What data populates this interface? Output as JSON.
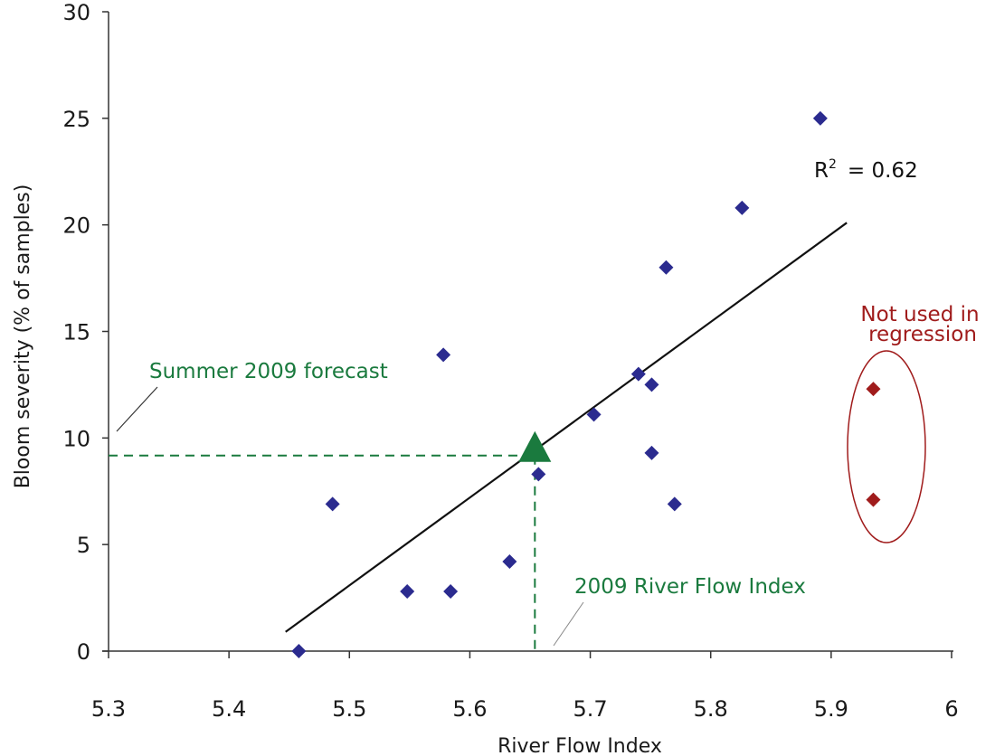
{
  "chart_data": {
    "type": "scatter",
    "xlabel": "River Flow Index",
    "ylabel": "Bloom severity (% of samples)",
    "xlim": [
      5.3,
      6
    ],
    "ylim": [
      0,
      30
    ],
    "x_ticks": [
      "5.3",
      "5.4",
      "5.5",
      "5.6",
      "5.7",
      "5.8",
      "5.9",
      "6"
    ],
    "y_ticks": [
      "0",
      "5",
      "10",
      "15",
      "20",
      "25",
      "30"
    ],
    "grid": false,
    "series": [
      {
        "color": "#2b2b8f",
        "marker": "diamond",
        "points": [
          {
            "x": 5.458,
            "y": 0
          },
          {
            "x": 5.486,
            "y": 6.9
          },
          {
            "x": 5.548,
            "y": 2.8
          },
          {
            "x": 5.578,
            "y": 13.9
          },
          {
            "x": 5.584,
            "y": 2.8
          },
          {
            "x": 5.633,
            "y": 4.2
          },
          {
            "x": 5.657,
            "y": 8.3
          },
          {
            "x": 5.703,
            "y": 11.1
          },
          {
            "x": 5.74,
            "y": 13.0
          },
          {
            "x": 5.751,
            "y": 12.5
          },
          {
            "x": 5.751,
            "y": 9.3
          },
          {
            "x": 5.763,
            "y": 18.0
          },
          {
            "x": 5.77,
            "y": 6.9
          },
          {
            "x": 5.826,
            "y": 20.8
          },
          {
            "x": 5.891,
            "y": 25.0
          }
        ]
      },
      {
        "color": "#a01c1c",
        "marker": "diamond",
        "points": [
          {
            "x": 5.935,
            "y": 12.3
          },
          {
            "x": 5.935,
            "y": 7.1
          }
        ]
      }
    ],
    "trendline": {
      "color": "#111111",
      "from": {
        "x": 5.447,
        "y": 0.9
      },
      "to": {
        "x": 5.913,
        "y": 20.1
      }
    },
    "forecast": {
      "color": "#1a7a3e",
      "marker": "triangle",
      "x": 5.654,
      "y": 9.6
    },
    "annotations": {
      "r2_base": "R",
      "r2_sup": "2",
      "r2_value": "= 0.62",
      "forecast_label": "Summer 2009 forecast",
      "flow_label": "2009 River Flow Index",
      "not_used_line1": "Not used in",
      "not_used_line2": "regression",
      "forecast_color": "#1a7a3e",
      "excluded_color": "#a01c1c"
    }
  }
}
